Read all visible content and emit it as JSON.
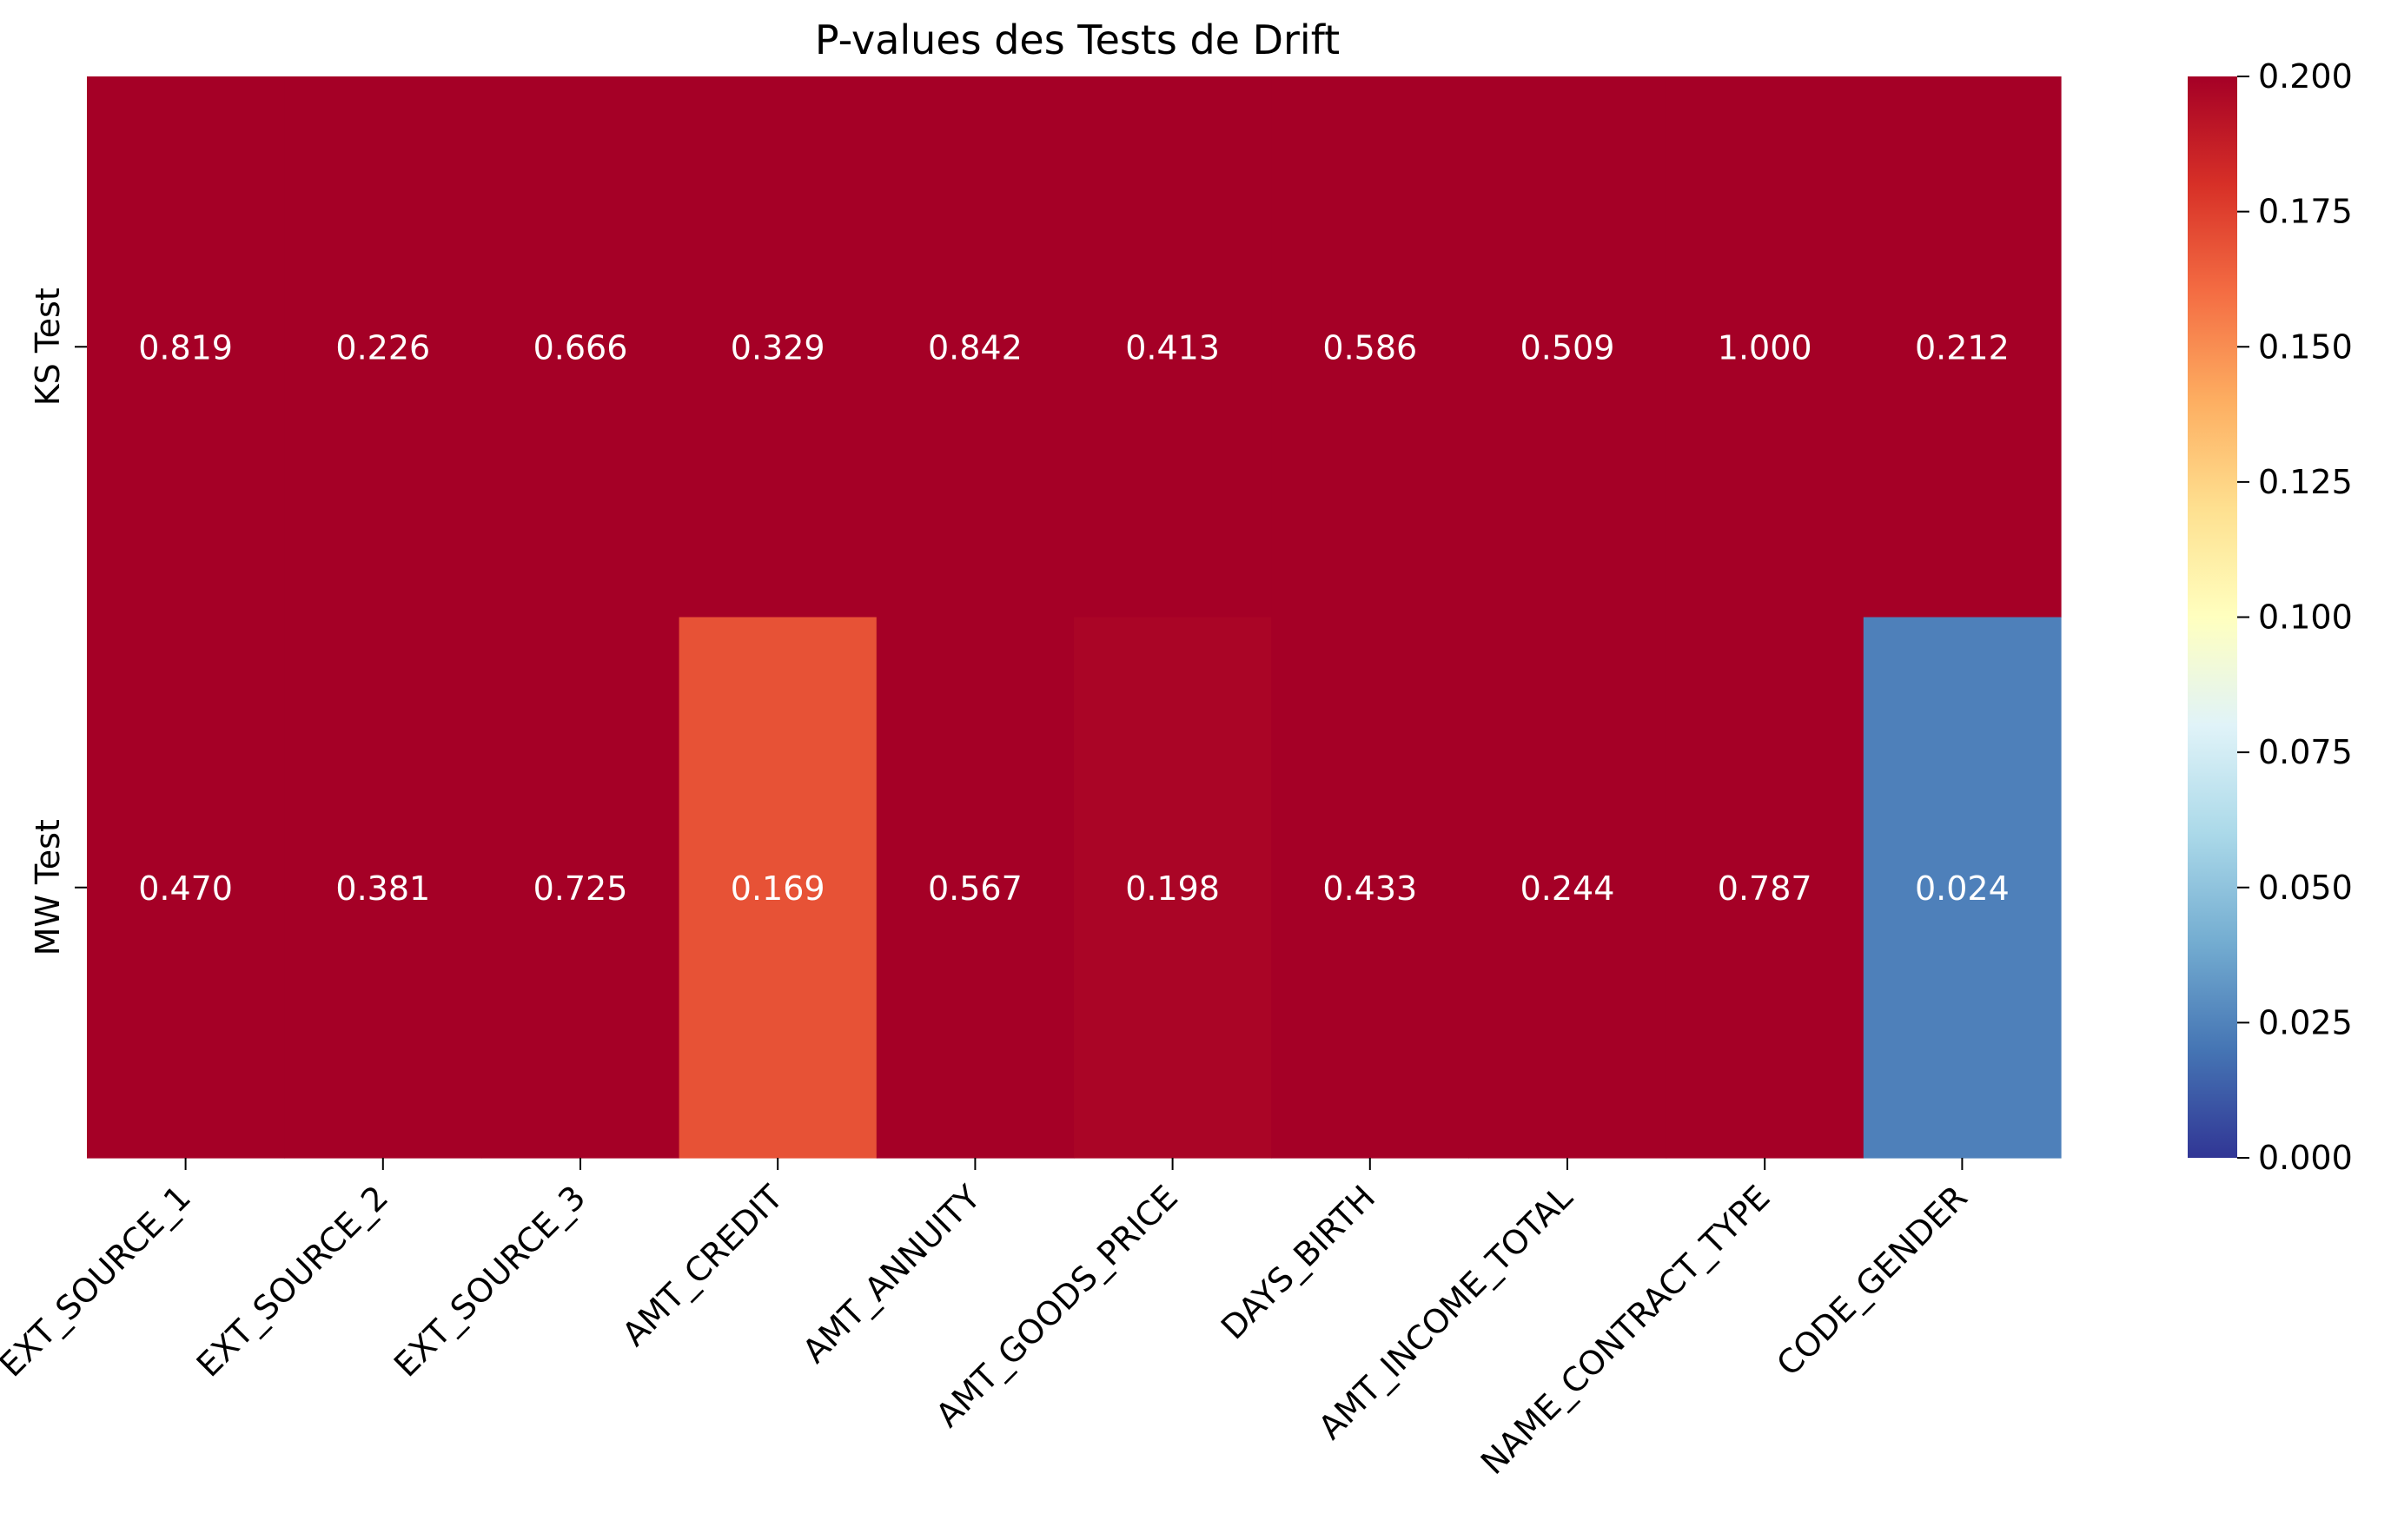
{
  "chart_data": {
    "type": "heatmap",
    "title": "P-values des Tests de Drift",
    "xlabel": "",
    "ylabel": "",
    "x_categories": [
      "EXT_SOURCE_1",
      "EXT_SOURCE_2",
      "EXT_SOURCE_3",
      "AMT_CREDIT",
      "AMT_ANNUITY",
      "AMT_GOODS_PRICE",
      "DAYS_BIRTH",
      "AMT_INCOME_TOTAL",
      "NAME_CONTRACT_TYPE",
      "CODE_GENDER"
    ],
    "y_categories": [
      "KS Test",
      "MW Test"
    ],
    "values": [
      [
        0.819,
        0.226,
        0.666,
        0.329,
        0.842,
        0.413,
        0.586,
        0.509,
        1.0,
        0.212
      ],
      [
        0.47,
        0.381,
        0.725,
        0.169,
        0.567,
        0.198,
        0.433,
        0.244,
        0.787,
        0.024
      ]
    ],
    "labels": [
      [
        "0.819",
        "0.226",
        "0.666",
        "0.329",
        "0.842",
        "0.413",
        "0.586",
        "0.509",
        "1.000",
        "0.212"
      ],
      [
        "0.470",
        "0.381",
        "0.725",
        "0.169",
        "0.567",
        "0.198",
        "0.433",
        "0.244",
        "0.787",
        "0.024"
      ]
    ],
    "colormap": "RdYlBu_r",
    "vmin": 0.0,
    "vmax": 0.2,
    "colorbar_ticks": [
      "0.000",
      "0.025",
      "0.050",
      "0.075",
      "0.100",
      "0.125",
      "0.150",
      "0.175",
      "0.200"
    ],
    "annotation_color": "#ffffff",
    "grid": false
  }
}
